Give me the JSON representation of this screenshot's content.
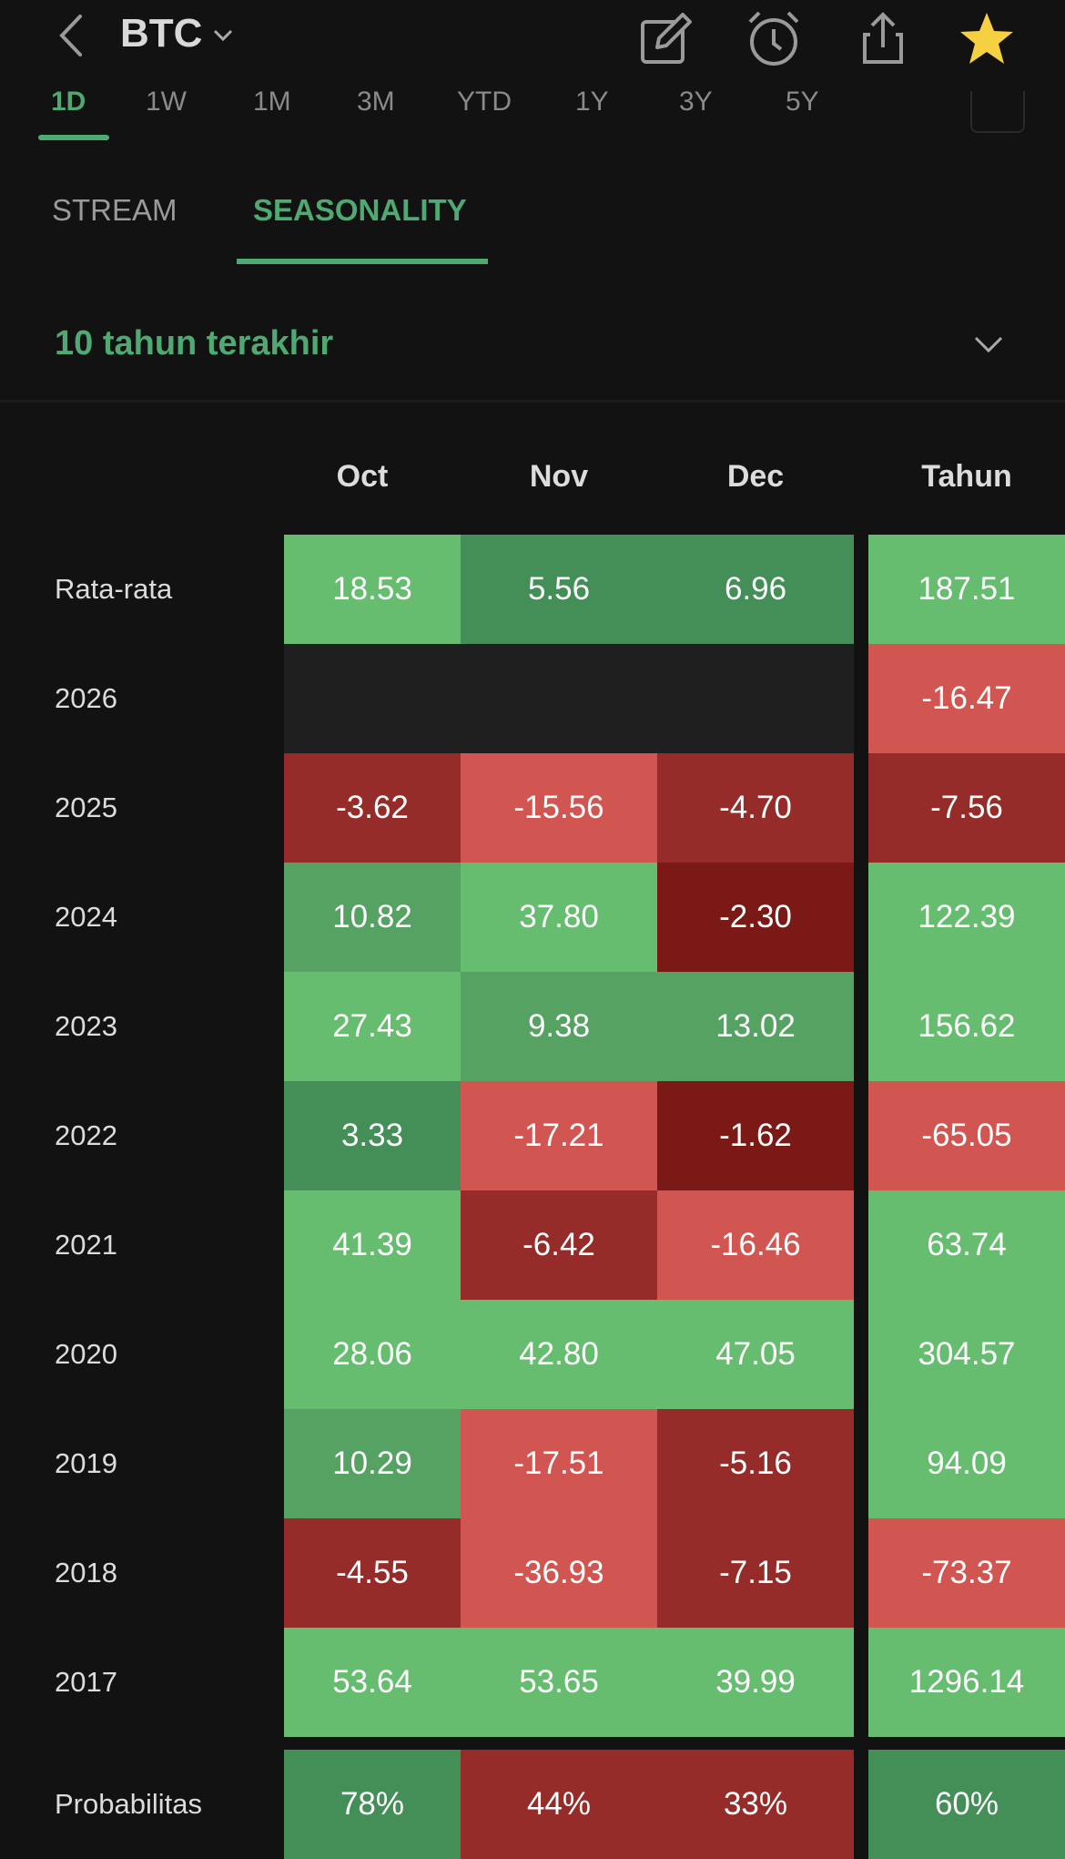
{
  "header": {
    "title": "BTC"
  },
  "periods": [
    "1D",
    "1W",
    "1M",
    "3M",
    "YTD",
    "1Y",
    "3Y",
    "5Y"
  ],
  "tabs": [
    "STREAM",
    "SEASONALITY"
  ],
  "filter": "10 tahun terakhir",
  "columns": [
    "Oct",
    "Nov",
    "Dec",
    "Tahun"
  ],
  "rows": [
    {
      "label": "Rata-rata",
      "values": [
        "18.53",
        "5.56",
        "6.96",
        "187.51"
      ],
      "colors": [
        "LG",
        "DG",
        "DG",
        "LG"
      ]
    },
    {
      "label": "2026",
      "values": [
        "",
        "",
        "",
        "-16.47"
      ],
      "colors": [
        "E",
        "E",
        "E",
        "LR"
      ]
    },
    {
      "label": "2025",
      "values": [
        "-3.62",
        "-15.56",
        "-4.70",
        "-7.56"
      ],
      "colors": [
        "R",
        "LR",
        "R",
        "R"
      ]
    },
    {
      "label": "2024",
      "values": [
        "10.82",
        "37.80",
        "-2.30",
        "122.39"
      ],
      "colors": [
        "MG",
        "LG",
        "DR",
        "LG"
      ]
    },
    {
      "label": "2023",
      "values": [
        "27.43",
        "9.38",
        "13.02",
        "156.62"
      ],
      "colors": [
        "LG",
        "MG",
        "MG",
        "LG"
      ]
    },
    {
      "label": "2022",
      "values": [
        "3.33",
        "-17.21",
        "-1.62",
        "-65.05"
      ],
      "colors": [
        "DG",
        "LR",
        "DR",
        "LR"
      ]
    },
    {
      "label": "2021",
      "values": [
        "41.39",
        "-6.42",
        "-16.46",
        "63.74"
      ],
      "colors": [
        "LG",
        "R",
        "LR",
        "LG"
      ]
    },
    {
      "label": "2020",
      "values": [
        "28.06",
        "42.80",
        "47.05",
        "304.57"
      ],
      "colors": [
        "LG",
        "LG",
        "LG",
        "LG"
      ]
    },
    {
      "label": "2019",
      "values": [
        "10.29",
        "-17.51",
        "-5.16",
        "94.09"
      ],
      "colors": [
        "MG",
        "LR",
        "R",
        "LG"
      ]
    },
    {
      "label": "2018",
      "values": [
        "-4.55",
        "-36.93",
        "-7.15",
        "-73.37"
      ],
      "colors": [
        "R",
        "LR",
        "R",
        "LR"
      ]
    },
    {
      "label": "2017",
      "values": [
        "53.64",
        "53.65",
        "39.99",
        "1296.14"
      ],
      "colors": [
        "LG",
        "LG",
        "LG",
        "LG"
      ]
    }
  ],
  "probability": {
    "label": "Probabilitas",
    "values": [
      "78%",
      "44%",
      "33%",
      "60%"
    ],
    "colors": [
      "DG",
      "R",
      "R",
      "DG"
    ]
  },
  "accent": "#4eaa72"
}
